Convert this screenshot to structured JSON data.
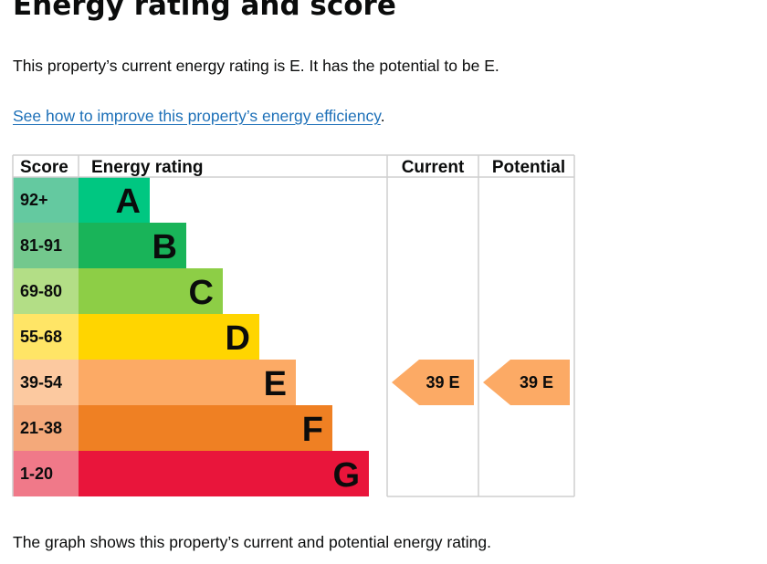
{
  "page": {
    "title": "Energy rating and score",
    "summary": "This property’s current energy rating is E. It has the potential to be E.",
    "improve_link": "See how to improve this property’s energy efficiency",
    "improve_suffix": ".",
    "footnote": "The graph shows this property’s current and potential energy rating."
  },
  "chart_data": {
    "type": "bar",
    "headers": {
      "score": "Score",
      "rating": "Energy rating",
      "current": "Current",
      "potential": "Potential"
    },
    "bands": [
      {
        "score": "92+",
        "letter": "A",
        "band_color": "#00c781",
        "score_color": "#64c9a0"
      },
      {
        "score": "81-91",
        "letter": "B",
        "band_color": "#19b459",
        "score_color": "#73c88d"
      },
      {
        "score": "69-80",
        "letter": "C",
        "band_color": "#8dce46",
        "score_color": "#b3de86"
      },
      {
        "score": "55-68",
        "letter": "D",
        "band_color": "#ffd500",
        "score_color": "#ffe566"
      },
      {
        "score": "39-54",
        "letter": "E",
        "band_color": "#fcaa65",
        "score_color": "#fcc9a0"
      },
      {
        "score": "21-38",
        "letter": "F",
        "band_color": "#ef8023",
        "score_color": "#f4a97a"
      },
      {
        "score": "1-20",
        "letter": "G",
        "band_color": "#e9153b",
        "score_color": "#f07989"
      }
    ],
    "current": {
      "score": 39,
      "letter": "E",
      "label": "39  E",
      "color": "#fcaa65"
    },
    "potential": {
      "score": 39,
      "letter": "E",
      "label": "39  E",
      "color": "#fcaa65"
    }
  }
}
